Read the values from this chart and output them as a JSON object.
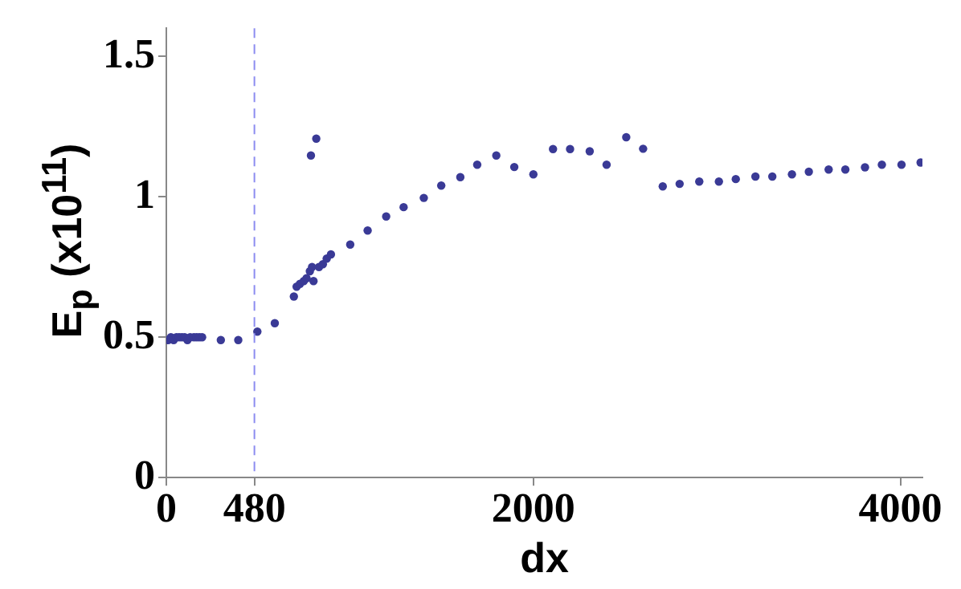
{
  "chart_data": {
    "type": "scatter",
    "xlabel": "dx",
    "ylabel": "E$_{p}$ (x10$^{11}$)",
    "x": [
      10,
      25,
      40,
      55,
      70,
      85,
      100,
      115,
      130,
      150,
      165,
      180,
      195,
      297,
      392,
      496,
      591,
      695,
      710,
      728,
      749,
      764,
      782,
      794,
      802,
      832,
      853,
      874,
      897,
      788,
      817,
      1002,
      1097,
      1198,
      1293,
      1403,
      1498,
      1602,
      1694,
      1798,
      1896,
      2000,
      2107,
      2200,
      2307,
      2399,
      2506,
      2598,
      2705,
      2797,
      2904,
      3011,
      3103,
      3210,
      3302,
      3409,
      3501,
      3609,
      3700,
      3807,
      3899,
      4006,
      4110
    ],
    "values": [
      0.49,
      0.5,
      0.49,
      0.5,
      0.5,
      0.5,
      0.5,
      0.49,
      0.5,
      0.5,
      0.5,
      0.5,
      0.5,
      0.49,
      0.49,
      0.52,
      0.55,
      0.645,
      0.68,
      0.69,
      0.7,
      0.71,
      0.735,
      0.75,
      0.7,
      0.75,
      0.76,
      0.78,
      0.795,
      1.147,
      1.207,
      0.83,
      0.88,
      0.93,
      0.963,
      0.996,
      1.04,
      1.07,
      1.114,
      1.147,
      1.106,
      1.08,
      1.17,
      1.17,
      1.162,
      1.114,
      1.212,
      1.171,
      1.037,
      1.046,
      1.054,
      1.054,
      1.063,
      1.072,
      1.072,
      1.08,
      1.089,
      1.097,
      1.097,
      1.105,
      1.114,
      1.114,
      1.122
    ],
    "color": "#3a3a96",
    "marker": "circle",
    "grid": false,
    "xlim": [
      0,
      4120
    ],
    "xticks": [
      0,
      480,
      2000,
      4000
    ],
    "ylim": [
      0,
      1.6
    ],
    "yticks": [
      0,
      0.5,
      1,
      1.5
    ],
    "ref_lines": [
      {
        "axis": "x",
        "value": 480,
        "color": "#8c8cf0",
        "line_style": "dashed"
      }
    ]
  }
}
